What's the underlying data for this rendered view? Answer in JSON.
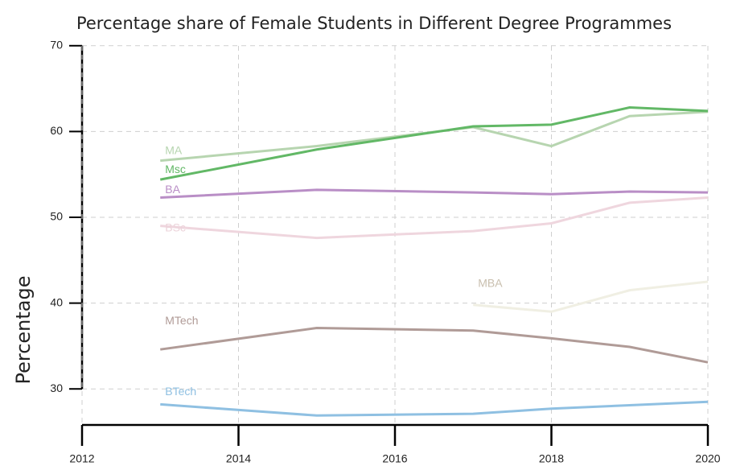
{
  "chart_data": {
    "type": "line",
    "title": "Percentage share of Female Students in Different Degree Programmes",
    "y_label": "Percentage",
    "x": [
      2013,
      2015,
      2017,
      2018,
      2019,
      2020
    ],
    "series": [
      {
        "name": "MA",
        "color": "#b7d5b0",
        "values": [
          56.6,
          58.3,
          60.5,
          58.3,
          61.8,
          62.3
        ]
      },
      {
        "name": "Msc",
        "color": "#62b866",
        "values": [
          54.4,
          57.9,
          60.6,
          60.8,
          62.8,
          62.4
        ]
      },
      {
        "name": "BA",
        "color": "#b98ec6",
        "values": [
          52.3,
          53.2,
          52.9,
          52.7,
          53.0,
          52.9
        ]
      },
      {
        "name": "BSc",
        "color": "#efd6de",
        "values": [
          49.0,
          47.6,
          48.4,
          49.3,
          51.7,
          52.3
        ]
      },
      {
        "name": "MBA",
        "color": "#f0efe3",
        "values": [
          null,
          null,
          39.8,
          39.0,
          41.5,
          42.5
        ]
      },
      {
        "name": "MTech",
        "color": "#b09b97",
        "values": [
          34.6,
          37.1,
          36.8,
          35.9,
          34.9,
          33.1
        ]
      },
      {
        "name": "BTech",
        "color": "#8fc0e2",
        "values": [
          28.2,
          26.9,
          27.1,
          27.7,
          28.1,
          28.5
        ]
      }
    ],
    "xlim": [
      2012,
      2020
    ],
    "xticks": [
      2012,
      2014,
      2016,
      2018,
      2020
    ],
    "ylim": [
      25.8,
      71.2
    ],
    "yticks": [
      30,
      40,
      50,
      60,
      70
    ],
    "grid": true
  }
}
